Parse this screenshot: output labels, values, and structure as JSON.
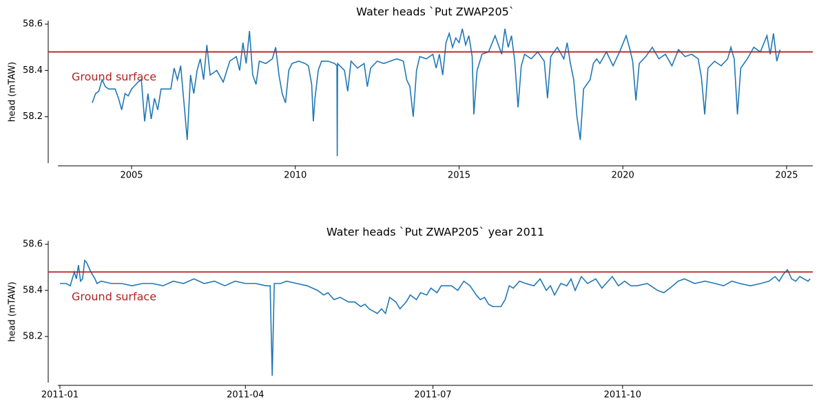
{
  "chart_data": [
    {
      "type": "line",
      "title": "Water heads `Put ZWAP205`",
      "ylabel": "head (mTAW)",
      "color": "#1f77b4",
      "x": [
        2003.8,
        2003.9,
        2004.0,
        2004.1,
        2004.2,
        2004.3,
        2004.5,
        2004.6,
        2004.7,
        2004.8,
        2004.9,
        2005.0,
        2005.2,
        2005.3,
        2005.4,
        2005.5,
        2005.6,
        2005.7,
        2005.8,
        2005.9,
        2006.1,
        2006.2,
        2006.3,
        2006.4,
        2006.5,
        2006.6,
        2006.7,
        2006.8,
        2006.9,
        2007.0,
        2007.1,
        2007.2,
        2007.3,
        2007.4,
        2007.6,
        2007.8,
        2008.0,
        2008.2,
        2008.3,
        2008.4,
        2008.5,
        2008.6,
        2008.7,
        2008.8,
        2008.9,
        2009.1,
        2009.3,
        2009.4,
        2009.5,
        2009.6,
        2009.7,
        2009.8,
        2009.9,
        2010.1,
        2010.3,
        2010.4,
        2010.5,
        2010.55,
        2010.6,
        2010.7,
        2010.8,
        2011.0,
        2011.2,
        2011.27,
        2011.28,
        2011.29,
        2011.5,
        2011.6,
        2011.7,
        2011.9,
        2012.0,
        2012.1,
        2012.2,
        2012.3,
        2012.5,
        2012.7,
        2012.9,
        2013.1,
        2013.3,
        2013.4,
        2013.5,
        2013.6,
        2013.7,
        2013.8,
        2014.0,
        2014.2,
        2014.3,
        2014.4,
        2014.5,
        2014.6,
        2014.7,
        2014.8,
        2014.9,
        2015.0,
        2015.1,
        2015.2,
        2015.3,
        2015.4,
        2015.45,
        2015.55,
        2015.7,
        2015.9,
        2016.1,
        2016.3,
        2016.4,
        2016.5,
        2016.6,
        2016.7,
        2016.8,
        2016.9,
        2017.0,
        2017.2,
        2017.4,
        2017.6,
        2017.7,
        2017.8,
        2018.0,
        2018.2,
        2018.3,
        2018.4,
        2018.5,
        2018.6,
        2018.7,
        2018.8,
        2019.0,
        2019.1,
        2019.2,
        2019.3,
        2019.5,
        2019.7,
        2019.9,
        2020.1,
        2020.2,
        2020.3,
        2020.4,
        2020.5,
        2020.7,
        2020.9,
        2021.1,
        2021.3,
        2021.5,
        2021.7,
        2021.9,
        2022.1,
        2022.3,
        2022.4,
        2022.5,
        2022.6,
        2022.8,
        2023.0,
        2023.2,
        2023.3,
        2023.4,
        2023.5,
        2023.6,
        2023.8,
        2024.0,
        2024.2,
        2024.4,
        2024.5,
        2024.6,
        2024.7,
        2024.8
      ],
      "values": [
        58.26,
        58.3,
        58.31,
        58.36,
        58.33,
        58.32,
        58.32,
        58.28,
        58.23,
        58.3,
        58.29,
        58.32,
        58.35,
        58.36,
        58.18,
        58.3,
        58.19,
        58.28,
        58.23,
        58.32,
        58.32,
        58.32,
        58.41,
        58.36,
        58.42,
        58.26,
        58.1,
        58.38,
        58.3,
        58.4,
        58.45,
        58.36,
        58.51,
        58.38,
        58.4,
        58.35,
        58.44,
        58.46,
        58.4,
        58.52,
        58.43,
        58.57,
        58.38,
        58.34,
        58.44,
        58.43,
        58.45,
        58.5,
        58.38,
        58.3,
        58.26,
        58.4,
        58.43,
        58.44,
        58.43,
        58.42,
        58.34,
        58.18,
        58.28,
        58.4,
        58.44,
        58.44,
        58.43,
        58.42,
        58.03,
        58.43,
        58.4,
        58.31,
        58.44,
        58.41,
        58.42,
        58.43,
        58.33,
        58.41,
        58.44,
        58.43,
        58.44,
        58.45,
        58.44,
        58.36,
        58.33,
        58.2,
        58.4,
        58.46,
        58.45,
        58.47,
        58.41,
        58.47,
        58.38,
        58.52,
        58.56,
        58.5,
        58.54,
        58.52,
        58.58,
        58.51,
        58.55,
        58.46,
        58.21,
        58.4,
        58.47,
        58.48,
        58.55,
        58.47,
        58.58,
        58.5,
        58.55,
        58.44,
        58.24,
        58.42,
        58.47,
        58.45,
        58.48,
        58.44,
        58.28,
        58.46,
        58.5,
        58.45,
        58.52,
        58.43,
        58.36,
        58.2,
        58.1,
        58.32,
        58.36,
        58.43,
        58.45,
        58.43,
        58.48,
        58.42,
        58.48,
        58.55,
        58.5,
        58.44,
        58.27,
        58.43,
        58.46,
        58.5,
        58.45,
        58.47,
        58.42,
        58.49,
        58.46,
        58.47,
        58.45,
        58.37,
        58.21,
        58.41,
        58.44,
        58.42,
        58.45,
        58.5,
        58.45,
        58.21,
        58.41,
        58.45,
        58.5,
        58.48,
        58.55,
        58.47,
        58.56,
        58.44,
        58.49
      ],
      "xlim": [
        2002.75,
        2025.8
      ],
      "xticks": [
        2005,
        2010,
        2015,
        2020,
        2025
      ],
      "ylim": [
        58.0,
        58.615
      ],
      "yticks": [
        58.2,
        58.4,
        58.6
      ],
      "hline": {
        "value": 58.48,
        "label": "Ground surface",
        "color": "#b22222"
      }
    },
    {
      "type": "line",
      "title": "Water heads `Put ZWAP205` year 2011",
      "ylabel": "head (mTAW)",
      "color": "#1f77b4",
      "x": [
        0,
        3,
        5,
        6,
        7,
        8,
        9,
        10,
        11,
        12,
        13,
        15,
        17,
        18,
        20,
        25,
        30,
        35,
        40,
        45,
        50,
        55,
        60,
        65,
        70,
        75,
        80,
        85,
        90,
        95,
        100,
        102,
        103,
        104,
        107,
        110,
        115,
        120,
        125,
        128,
        130,
        133,
        136,
        140,
        143,
        146,
        148,
        150,
        152,
        154,
        156,
        158,
        160,
        163,
        165,
        168,
        170,
        173,
        175,
        178,
        180,
        183,
        185,
        190,
        193,
        196,
        199,
        202,
        204,
        206,
        208,
        210,
        214,
        216,
        218,
        220,
        223,
        226,
        230,
        233,
        236,
        238,
        240,
        243,
        246,
        248,
        250,
        253,
        256,
        260,
        263,
        266,
        268,
        271,
        274,
        277,
        280,
        285,
        290,
        293,
        296,
        300,
        303,
        308,
        313,
        318,
        322,
        326,
        330,
        335,
        340,
        344,
        347,
        349,
        351,
        353,
        355,
        357,
        359,
        361,
        363,
        364
      ],
      "values": [
        58.43,
        58.43,
        58.42,
        58.45,
        58.48,
        58.45,
        58.51,
        58.44,
        58.45,
        58.53,
        58.52,
        58.48,
        58.45,
        58.43,
        58.44,
        58.43,
        58.43,
        58.42,
        58.43,
        58.43,
        58.42,
        58.44,
        58.43,
        58.45,
        58.43,
        58.44,
        58.42,
        58.44,
        58.43,
        58.43,
        58.42,
        58.42,
        58.03,
        58.43,
        58.43,
        58.44,
        58.43,
        58.42,
        58.4,
        58.38,
        58.39,
        58.36,
        58.37,
        58.35,
        58.35,
        58.33,
        58.34,
        58.32,
        58.31,
        58.3,
        58.32,
        58.3,
        58.37,
        58.35,
        58.32,
        58.35,
        58.38,
        58.36,
        58.39,
        58.38,
        58.41,
        58.39,
        58.42,
        58.42,
        58.4,
        58.44,
        58.42,
        58.38,
        58.36,
        58.37,
        58.34,
        58.33,
        58.33,
        58.36,
        58.42,
        58.41,
        58.44,
        58.43,
        58.42,
        58.45,
        58.4,
        58.42,
        58.38,
        58.43,
        58.42,
        58.45,
        58.4,
        58.46,
        58.43,
        58.45,
        58.41,
        58.44,
        58.46,
        58.42,
        58.44,
        58.42,
        58.42,
        58.43,
        58.4,
        58.39,
        58.41,
        58.44,
        58.45,
        58.43,
        58.44,
        58.43,
        58.42,
        58.44,
        58.43,
        58.42,
        58.43,
        58.44,
        58.46,
        58.44,
        58.47,
        58.49,
        58.45,
        58.44,
        58.46,
        58.45,
        58.44,
        58.45
      ],
      "xlim": [
        -1,
        365.3
      ],
      "xticks": [
        {
          "value": 0,
          "label": "2011-01"
        },
        {
          "value": 90,
          "label": "2011-04"
        },
        {
          "value": 181,
          "label": "2011-07"
        },
        {
          "value": 273,
          "label": "2011-10"
        }
      ],
      "ylim": [
        58.0,
        58.615
      ],
      "yticks": [
        58.2,
        58.4,
        58.6
      ],
      "hline": {
        "value": 58.48,
        "label": "Ground surface",
        "color": "#b22222"
      }
    }
  ]
}
